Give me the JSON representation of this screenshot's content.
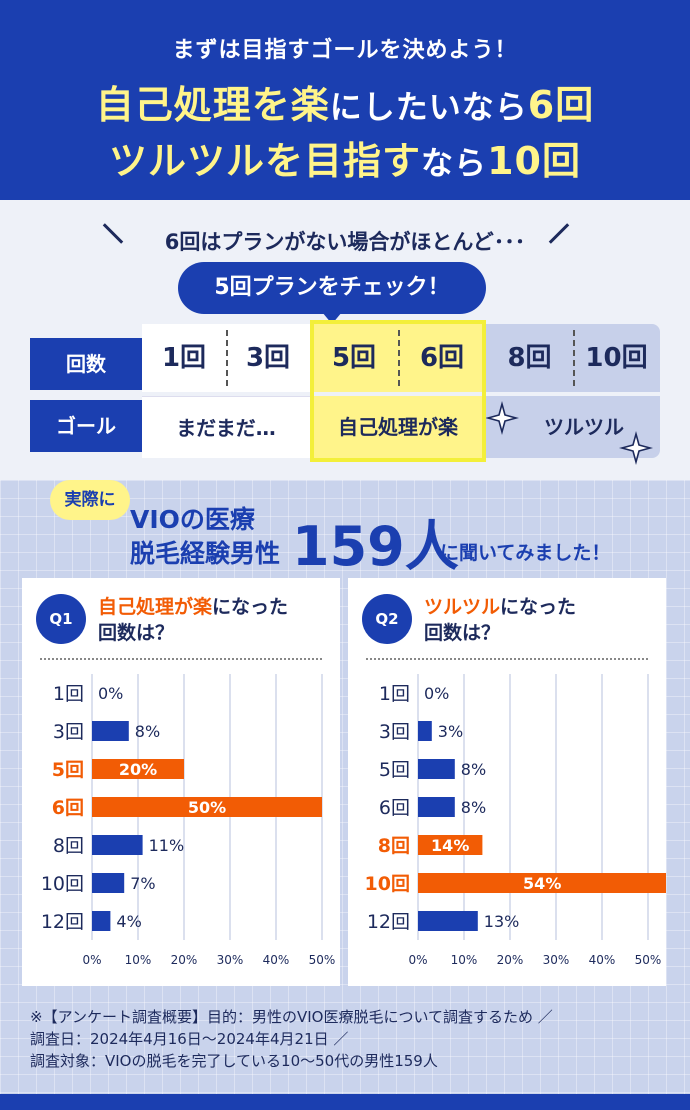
{
  "header": {
    "kicker": "まずは目指すゴールを決めよう！",
    "line1_a": "自己処理を楽",
    "line1_b": "にしたいなら",
    "line1_c": "6回",
    "line2_a": "ツルツルを目指す",
    "line2_b": "なら",
    "line2_c": "10回"
  },
  "plan": {
    "note": "6回はプランがない場合がほとんど･･･",
    "pill": "5回プランをチェック！",
    "row_counts_label": "回数",
    "row_goal_label": "ゴール",
    "counts": [
      "1回",
      "3回",
      "5回",
      "6回",
      "8回",
      "10回"
    ],
    "goals": [
      "まだまだ…",
      "自己処理が楽",
      "ツルツル"
    ],
    "colors": {
      "white": "#ffffff",
      "yellow": "#fff48a",
      "blue_light": "#c7d0ea",
      "yellow_border": "#f3ef3a"
    }
  },
  "survey": {
    "badge": "実際に",
    "line1": "VIOの医療",
    "line2": "脱毛経験男性",
    "big": "159人",
    "tail": "に聞いてみました！"
  },
  "chart_data": [
    {
      "type": "bar",
      "orientation": "horizontal",
      "badge": "Q1",
      "title_highlight": "自己処理が楽",
      "title_rest": "になった",
      "title_line2": "回数は？",
      "categories": [
        "1回",
        "3回",
        "5回",
        "6回",
        "8回",
        "10回",
        "12回"
      ],
      "values": [
        0,
        8,
        20,
        50,
        11,
        7,
        4
      ],
      "value_labels": [
        "0%",
        "8%",
        "20%",
        "50%",
        "11%",
        "7%",
        "4%"
      ],
      "highlight": [
        false,
        false,
        true,
        true,
        false,
        false,
        false
      ],
      "xticks": [
        "0%",
        "10%",
        "20%",
        "30%",
        "40%",
        "50%"
      ],
      "xlim": [
        0,
        50
      ]
    },
    {
      "type": "bar",
      "orientation": "horizontal",
      "badge": "Q2",
      "title_highlight": "ツルツル",
      "title_rest": "になった",
      "title_line2": "回数は？",
      "categories": [
        "1回",
        "3回",
        "5回",
        "6回",
        "8回",
        "10回",
        "12回"
      ],
      "values": [
        0,
        3,
        8,
        8,
        14,
        54,
        13
      ],
      "value_labels": [
        "0%",
        "3%",
        "8%",
        "8%",
        "14%",
        "54%",
        "13%"
      ],
      "highlight": [
        false,
        false,
        false,
        false,
        true,
        true,
        false
      ],
      "xticks": [
        "0%",
        "10%",
        "20%",
        "30%",
        "40%",
        "50%"
      ],
      "xlim": [
        0,
        50
      ]
    }
  ],
  "colors": {
    "blue": "#1b3fb0",
    "orange": "#f25c05",
    "text": "#1d2a5c"
  },
  "footer": {
    "line1": "※【アンケート調査概要】目的：男性のVIO医療脱毛について調査するため ／",
    "line2": "調査日：2024年4月16日〜2024年4月21日 ／",
    "line3": "調査対象：VIOの脱毛を完了している10〜50代の男性159人"
  }
}
